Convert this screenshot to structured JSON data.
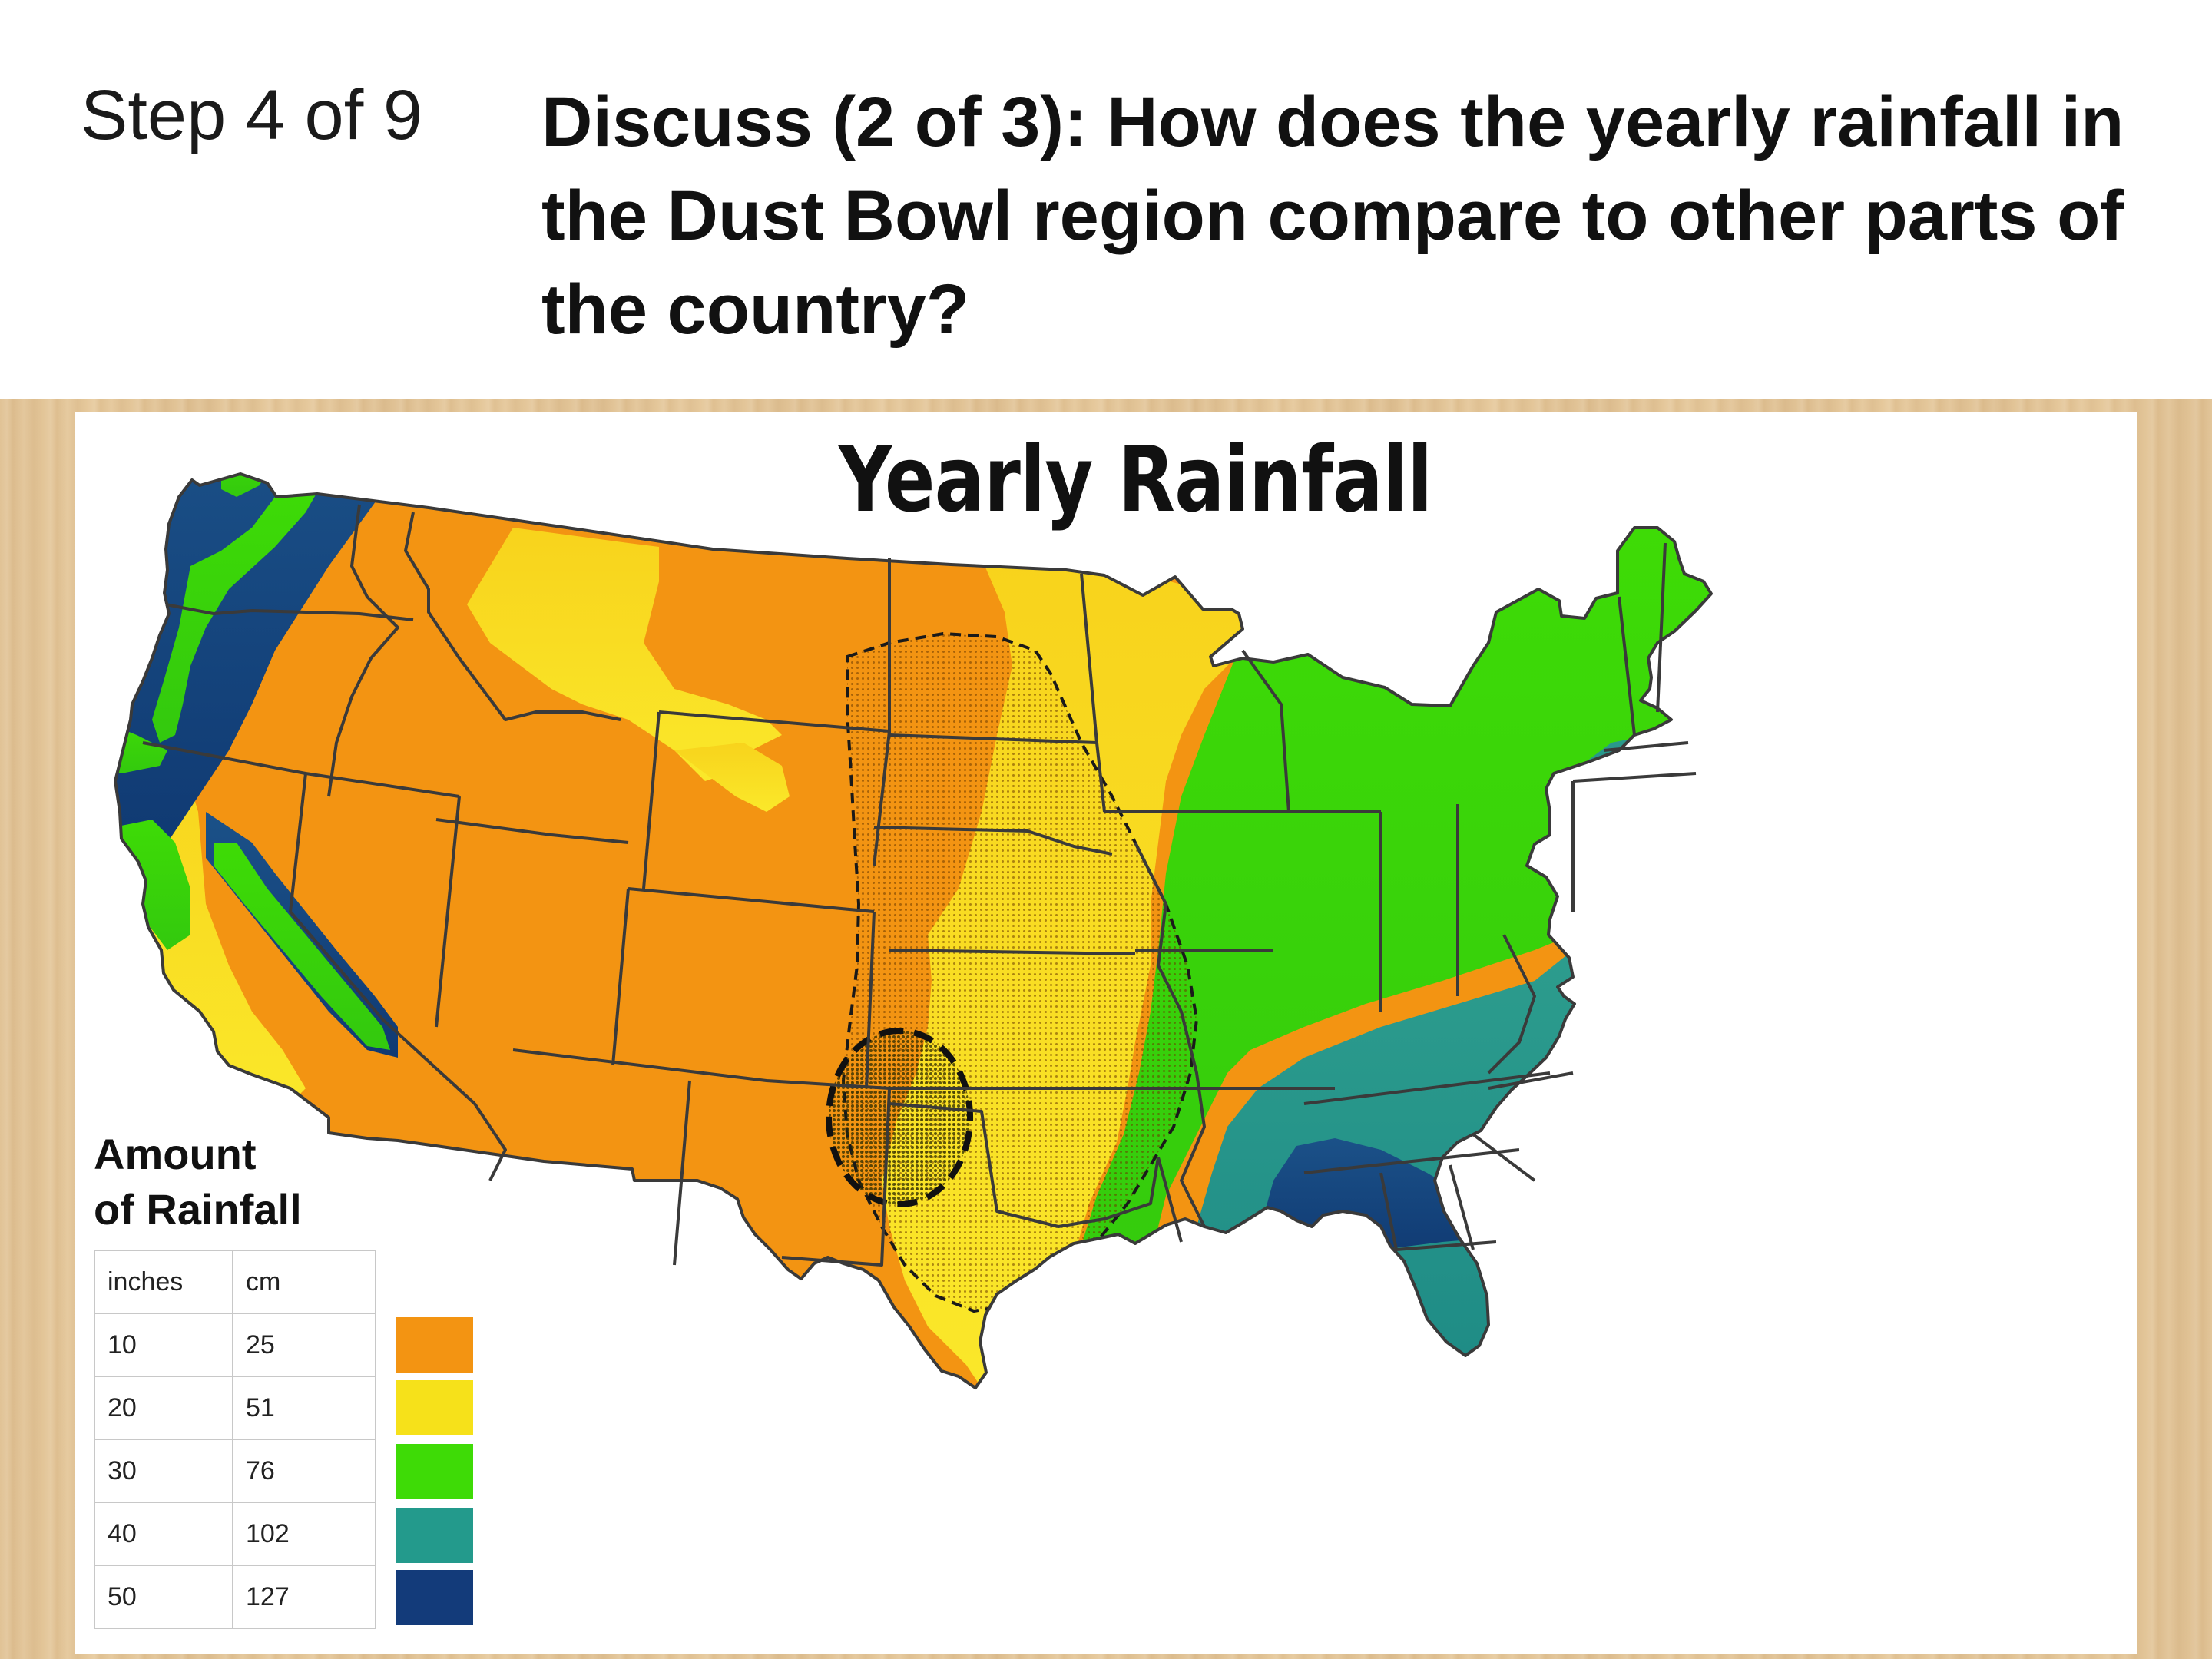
{
  "header": {
    "step": "Step 4 of 9",
    "question": "Discuss (2 of 3): How does the yearly rainfall in the Dust Bowl region compare to other parts of the country?"
  },
  "map": {
    "title": "Yearly Rainfall",
    "legend": {
      "title_line1": "Amount",
      "title_line2": "of Rainfall",
      "columns": [
        "inches",
        "cm"
      ],
      "rows": [
        {
          "inches": "10",
          "cm": "25",
          "color": "#F39412"
        },
        {
          "inches": "20",
          "cm": "51",
          "color": "#F6E11A"
        },
        {
          "inches": "30",
          "cm": "76",
          "color": "#3EDB06"
        },
        {
          "inches": "40",
          "cm": "102",
          "color": "#239A8C"
        },
        {
          "inches": "50",
          "cm": "127",
          "color": "#133B7A"
        }
      ]
    },
    "regions": {
      "dust_bowl_outline": "dashed",
      "dust_bowl_core_outline": "dashed"
    },
    "colors": {
      "border": "#3a3a3a",
      "background": "#ffffff"
    }
  }
}
